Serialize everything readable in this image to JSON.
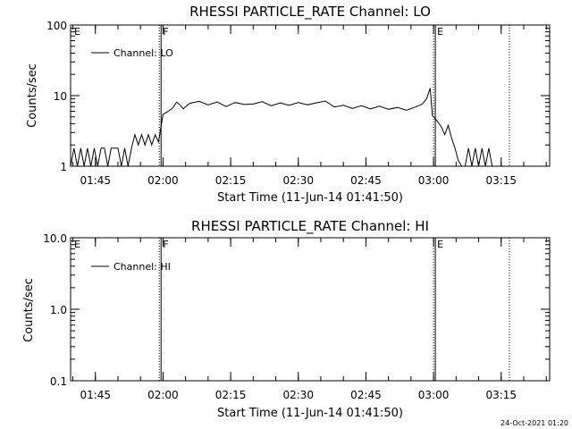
{
  "footer": "24-Oct-2021 01:20",
  "chart_data": [
    {
      "type": "line",
      "title": "RHESSI PARTICLE_RATE Channel: LO",
      "xlabel": "Start Time (11-Jun-14 01:41:50)",
      "ylabel": "Counts/sec",
      "yscale": "log",
      "ylim": [
        1,
        100
      ],
      "xlim": [
        "01:39:30",
        "03:25:45"
      ],
      "x_tick_labels": [
        "01:45",
        "02:00",
        "02:15",
        "02:30",
        "02:45",
        "03:00",
        "03:15"
      ],
      "y_tick_labels": [
        "1",
        "10",
        "100"
      ],
      "y_tick_values": [
        1,
        10,
        100
      ],
      "legend": {
        "placement": "top-left",
        "entries": [
          "Channel: LO"
        ]
      },
      "markers": [
        {
          "label": "E",
          "x": "01:39:30",
          "style": "none"
        },
        {
          "label": "F",
          "x": "01:59:10",
          "style": "dotted+solid"
        },
        {
          "label": "E",
          "x": "03:00:00",
          "style": "dotted+solid"
        },
        {
          "label": "",
          "x": "03:16:50",
          "style": "dotted"
        }
      ],
      "series": [
        {
          "name": "Channel: LO",
          "x": [
            "01:39:30",
            "01:40:15",
            "01:41:00",
            "01:41:45",
            "01:42:30",
            "01:43:15",
            "01:44:00",
            "01:44:45",
            "01:45:30",
            "01:46:15",
            "01:47:00",
            "01:47:45",
            "01:48:30",
            "01:49:15",
            "01:50:00",
            "01:50:45",
            "01:51:30",
            "01:52:15",
            "01:53:00",
            "01:53:45",
            "01:54:30",
            "01:55:15",
            "01:56:00",
            "01:56:45",
            "01:57:30",
            "01:58:15",
            "01:59:00",
            "01:59:30",
            "02:00:00",
            "02:00:45",
            "02:01:30",
            "02:02:15",
            "02:03:00",
            "02:03:45",
            "02:04:30",
            "02:05:15",
            "02:06:00",
            "02:08:00",
            "02:10:00",
            "02:12:00",
            "02:14:00",
            "02:16:00",
            "02:18:00",
            "02:20:00",
            "02:22:00",
            "02:24:00",
            "02:26:00",
            "02:28:00",
            "02:30:00",
            "02:32:00",
            "02:34:00",
            "02:36:00",
            "02:38:00",
            "02:40:00",
            "02:42:00",
            "02:44:00",
            "02:46:00",
            "02:48:00",
            "02:50:00",
            "02:52:00",
            "02:54:00",
            "02:56:00",
            "02:57:30",
            "02:58:30",
            "02:59:15",
            "02:59:45",
            "03:00:15",
            "03:01:00",
            "03:01:45",
            "03:02:30",
            "03:03:15",
            "03:04:00",
            "03:04:45",
            "03:05:30",
            "03:06:15",
            "03:07:00",
            "03:07:45",
            "03:08:30",
            "03:09:15",
            "03:10:00",
            "03:10:45",
            "03:11:30",
            "03:12:15",
            "03:13:00",
            "03:13:45"
          ],
          "y": [
            1,
            1.8,
            1,
            1.8,
            1,
            1.8,
            1,
            1.8,
            1,
            1.8,
            1.8,
            1,
            1.8,
            1.8,
            1.8,
            1,
            1.8,
            1,
            1.8,
            2.8,
            2,
            2.8,
            2,
            2.8,
            2,
            2.8,
            2.2,
            3.5,
            5.4,
            5.8,
            6.2,
            6.8,
            8.1,
            7.4,
            6.5,
            7.2,
            7.8,
            8.3,
            7.4,
            8.1,
            7.0,
            8.0,
            7.5,
            7.6,
            8.2,
            7.2,
            7.9,
            7.3,
            8.0,
            7.4,
            7.9,
            8.4,
            6.9,
            7.3,
            6.6,
            7.2,
            6.5,
            7.1,
            6.4,
            6.8,
            6.2,
            6.9,
            7.6,
            9.1,
            12.8,
            5.2,
            4.8,
            4.2,
            3.6,
            2.8,
            3.8,
            2.5,
            1.8,
            1.2,
            1,
            1,
            1.8,
            1,
            1.8,
            1,
            1.8,
            1,
            1.8,
            1,
            1
          ]
        }
      ]
    },
    {
      "type": "line",
      "title": "RHESSI PARTICLE_RATE Channel: HI",
      "xlabel": "Start Time (11-Jun-14 01:41:50)",
      "ylabel": "Counts/sec",
      "yscale": "log",
      "ylim": [
        0.1,
        10
      ],
      "xlim": [
        "01:39:30",
        "03:25:45"
      ],
      "x_tick_labels": [
        "01:45",
        "02:00",
        "02:15",
        "02:30",
        "02:45",
        "03:00",
        "03:15"
      ],
      "y_tick_labels": [
        "0.1",
        "1.0",
        "10.0"
      ],
      "y_tick_values": [
        0.1,
        1,
        10
      ],
      "legend": {
        "placement": "top-left",
        "entries": [
          "Channel: HI"
        ]
      },
      "markers": [
        {
          "label": "E",
          "x": "01:39:30",
          "style": "none"
        },
        {
          "label": "F",
          "x": "01:59:10",
          "style": "dotted+solid"
        },
        {
          "label": "E",
          "x": "03:00:00",
          "style": "dotted+solid"
        },
        {
          "label": "",
          "x": "03:16:50",
          "style": "dotted"
        }
      ],
      "series": [
        {
          "name": "Channel: HI",
          "x": [],
          "y": []
        }
      ]
    }
  ]
}
